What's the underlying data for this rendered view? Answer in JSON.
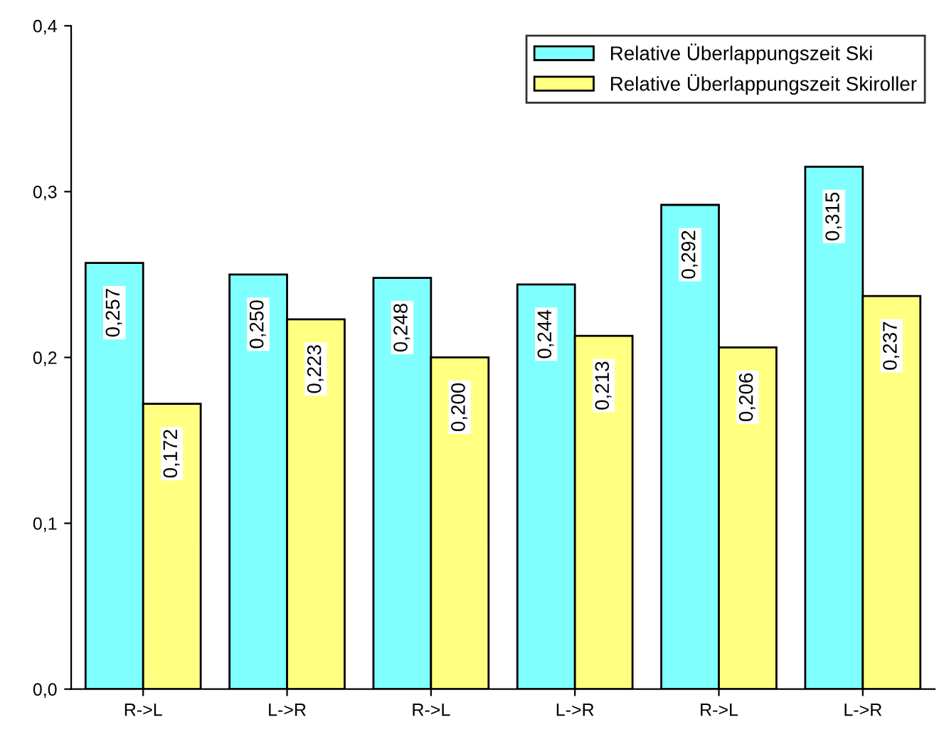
{
  "chart_data": {
    "type": "bar",
    "categories": [
      "R->L",
      "L->R",
      "R->L",
      "L->R",
      "R->L",
      "L->R"
    ],
    "series": [
      {
        "name": "Relative Überlappungszeit Ski",
        "color": "#80ffff",
        "values": [
          0.257,
          0.25,
          0.248,
          0.244,
          0.292,
          0.315
        ],
        "value_labels": [
          "0,257",
          "0,250",
          "0,248",
          "0,244",
          "0,292",
          "0,315"
        ]
      },
      {
        "name": "Relative Überlappungszeit Skiroller",
        "color": "#ffff80",
        "values": [
          0.172,
          0.223,
          0.2,
          0.213,
          0.206,
          0.237
        ],
        "value_labels": [
          "0,172",
          "0,223",
          "0,200",
          "0,213",
          "0,206",
          "0,237"
        ]
      }
    ],
    "ylim": [
      0,
      0.4
    ],
    "yticks": [
      {
        "value": 0,
        "label": "0,0"
      },
      {
        "value": 0.1,
        "label": "0,1"
      },
      {
        "value": 0.2,
        "label": "0,2"
      },
      {
        "value": 0.3,
        "label": "0,3"
      },
      {
        "value": 0.4,
        "label": "0,4"
      }
    ],
    "grid": false,
    "legend": "top right"
  }
}
